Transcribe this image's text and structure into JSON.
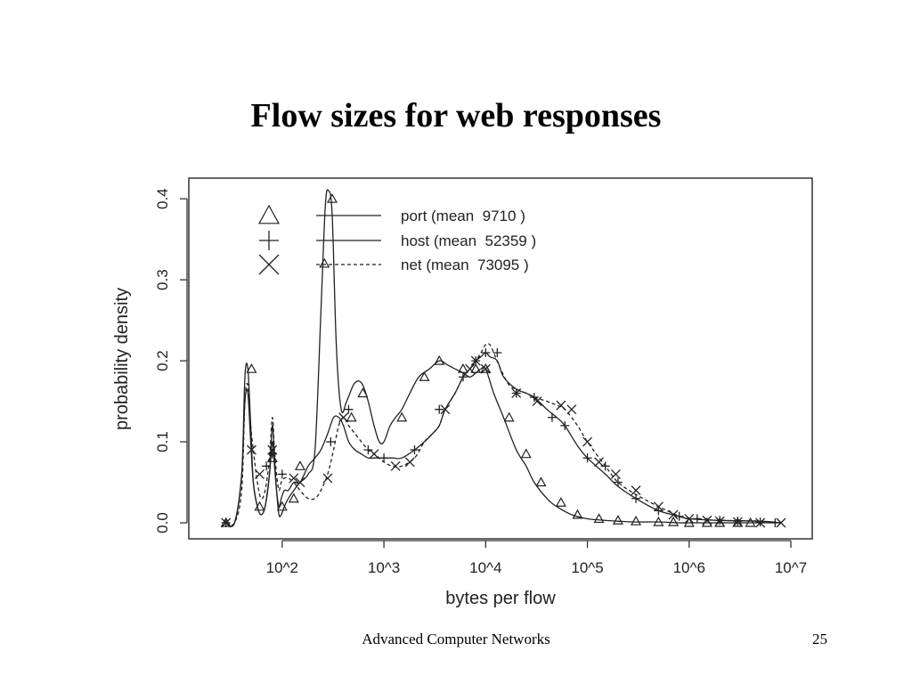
{
  "slide": {
    "title": "Flow sizes for web responses",
    "footer": "Advanced Computer Networks",
    "page_number": "25"
  },
  "chart_data": {
    "type": "line",
    "title": "",
    "xlabel": "bytes per flow",
    "ylabel": "probability density",
    "x_scale": "log10",
    "xlim": [
      20,
      10000000
    ],
    "ylim": [
      0,
      0.42
    ],
    "x_ticks": [
      {
        "value": 100,
        "label": "10^2"
      },
      {
        "value": 1000,
        "label": "10^3"
      },
      {
        "value": 10000,
        "label": "10^4"
      },
      {
        "value": 100000,
        "label": "10^5"
      },
      {
        "value": 1000000,
        "label": "10^6"
      },
      {
        "value": 10000000,
        "label": "10^7"
      }
    ],
    "y_ticks": [
      {
        "value": 0.0,
        "label": "0.0"
      },
      {
        "value": 0.1,
        "label": "0.1"
      },
      {
        "value": 0.2,
        "label": "0.2"
      },
      {
        "value": 0.3,
        "label": "0.3"
      },
      {
        "value": 0.4,
        "label": "0.4"
      }
    ],
    "grid": false,
    "legend_position": "top-left",
    "colors": {
      "line": "#222222",
      "axis": "#333333",
      "text": "#222222"
    },
    "series": [
      {
        "name": "port (mean  9710 )",
        "marker": "triangle",
        "dash": "solid",
        "x": [
          28,
          34,
          40,
          43,
          46,
          49,
          52,
          57,
          62,
          68,
          75,
          80,
          84,
          88,
          93,
          98,
          105,
          115,
          130,
          150,
          180,
          210,
          240,
          265,
          285,
          310,
          340,
          380,
          430,
          500,
          560,
          620,
          700,
          800,
          900,
          1000,
          1150,
          1300,
          1500,
          1800,
          2200,
          2800,
          3500,
          4200,
          5000,
          6000,
          7000,
          8000,
          9000,
          10000,
          12000,
          15000,
          20000,
          25000,
          30000,
          40000,
          50000,
          70000,
          100000,
          150000,
          200000,
          300000,
          500000,
          800000,
          1000000,
          2000000,
          5000000,
          8000000
        ],
        "y": [
          0.0,
          0.0,
          0.06,
          0.18,
          0.19,
          0.12,
          0.05,
          0.02,
          0.01,
          0.02,
          0.06,
          0.12,
          0.08,
          0.04,
          0.01,
          0.01,
          0.02,
          0.03,
          0.04,
          0.05,
          0.06,
          0.09,
          0.26,
          0.39,
          0.41,
          0.38,
          0.22,
          0.14,
          0.15,
          0.17,
          0.175,
          0.17,
          0.15,
          0.12,
          0.1,
          0.1,
          0.12,
          0.13,
          0.14,
          0.16,
          0.18,
          0.19,
          0.2,
          0.195,
          0.19,
          0.185,
          0.18,
          0.185,
          0.19,
          0.19,
          0.16,
          0.13,
          0.09,
          0.07,
          0.05,
          0.03,
          0.02,
          0.01,
          0.005,
          0.003,
          0.002,
          0.001,
          0.001,
          0.0,
          0.0,
          0.0,
          0.0,
          0.0
        ],
        "marker_x": [
          28,
          50,
          60,
          80,
          100,
          130,
          150,
          260,
          310,
          480,
          620,
          1500,
          2500,
          3500,
          6000,
          8000,
          10000,
          17000,
          25000,
          35000,
          55000,
          80000,
          130000,
          200000,
          300000,
          500000,
          700000,
          1000000,
          1500000,
          2000000,
          3000000,
          4000000
        ],
        "marker_y": [
          0.0,
          0.19,
          0.02,
          0.08,
          0.02,
          0.03,
          0.07,
          0.32,
          0.4,
          0.13,
          0.16,
          0.13,
          0.18,
          0.2,
          0.19,
          0.19,
          0.19,
          0.13,
          0.085,
          0.05,
          0.025,
          0.01,
          0.005,
          0.003,
          0.002,
          0.001,
          0.001,
          0.0,
          0.0,
          0.0,
          0.0,
          0.0
        ]
      },
      {
        "name": "host (mean  52359 )",
        "marker": "plus",
        "dash": "solid",
        "x": [
          28,
          34,
          40,
          43,
          46,
          49,
          52,
          57,
          62,
          68,
          75,
          80,
          84,
          88,
          93,
          98,
          105,
          115,
          130,
          150,
          180,
          210,
          240,
          280,
          320,
          360,
          400,
          450,
          520,
          600,
          700,
          800,
          900,
          1000,
          1200,
          1500,
          2000,
          2500,
          3000,
          3500,
          4000,
          5000,
          6000,
          7000,
          8000,
          9000,
          10000,
          11000,
          13000,
          15000,
          20000,
          25000,
          30000,
          40000,
          50000,
          60000,
          80000,
          100000,
          150000,
          200000,
          300000,
          500000,
          800000,
          1000000,
          2000000,
          5000000,
          8000000
        ],
        "y": [
          0.0,
          0.0,
          0.06,
          0.15,
          0.16,
          0.1,
          0.05,
          0.02,
          0.01,
          0.02,
          0.06,
          0.1,
          0.07,
          0.04,
          0.02,
          0.03,
          0.04,
          0.04,
          0.05,
          0.05,
          0.07,
          0.08,
          0.09,
          0.11,
          0.13,
          0.13,
          0.12,
          0.1,
          0.09,
          0.085,
          0.08,
          0.08,
          0.08,
          0.08,
          0.08,
          0.08,
          0.09,
          0.1,
          0.11,
          0.12,
          0.14,
          0.16,
          0.18,
          0.19,
          0.2,
          0.205,
          0.21,
          0.205,
          0.2,
          0.18,
          0.165,
          0.16,
          0.155,
          0.14,
          0.13,
          0.12,
          0.095,
          0.08,
          0.06,
          0.045,
          0.03,
          0.015,
          0.008,
          0.005,
          0.003,
          0.002,
          0.0
        ],
        "marker_x": [
          28,
          70,
          80,
          100,
          300,
          450,
          700,
          1000,
          2000,
          3500,
          6000,
          8000,
          10000,
          13000,
          20000,
          30000,
          45000,
          60000,
          100000,
          150000,
          200000,
          300000,
          500000,
          800000,
          1200000,
          2000000,
          3000000,
          5000000,
          7000000
        ],
        "marker_y": [
          0.0,
          0.07,
          0.085,
          0.06,
          0.1,
          0.14,
          0.09,
          0.08,
          0.09,
          0.14,
          0.18,
          0.2,
          0.21,
          0.21,
          0.16,
          0.155,
          0.13,
          0.12,
          0.08,
          0.07,
          0.05,
          0.03,
          0.015,
          0.008,
          0.005,
          0.003,
          0.002,
          0.001,
          0.0
        ]
      },
      {
        "name": "net (mean  73095 )",
        "marker": "x",
        "dash": "dashed",
        "x": [
          28,
          34,
          40,
          43,
          46,
          49,
          52,
          57,
          62,
          68,
          75,
          80,
          84,
          88,
          93,
          98,
          105,
          115,
          130,
          150,
          180,
          210,
          240,
          280,
          320,
          360,
          400,
          450,
          520,
          600,
          700,
          800,
          900,
          1000,
          1200,
          1500,
          2000,
          2500,
          3000,
          3500,
          4000,
          5000,
          6000,
          7000,
          8000,
          9000,
          10000,
          11000,
          12000,
          14000,
          17000,
          20000,
          25000,
          30000,
          40000,
          50000,
          60000,
          80000,
          100000,
          150000,
          200000,
          300000,
          500000,
          800000,
          1000000,
          2000000,
          5000000,
          8000000
        ],
        "y": [
          0.0,
          0.0,
          0.04,
          0.15,
          0.17,
          0.12,
          0.09,
          0.05,
          0.03,
          0.04,
          0.08,
          0.13,
          0.09,
          0.06,
          0.04,
          0.05,
          0.055,
          0.055,
          0.05,
          0.04,
          0.03,
          0.03,
          0.04,
          0.06,
          0.09,
          0.12,
          0.13,
          0.12,
          0.11,
          0.1,
          0.09,
          0.085,
          0.08,
          0.075,
          0.07,
          0.07,
          0.08,
          0.1,
          0.11,
          0.12,
          0.14,
          0.16,
          0.18,
          0.19,
          0.2,
          0.21,
          0.22,
          0.22,
          0.21,
          0.19,
          0.17,
          0.165,
          0.16,
          0.155,
          0.15,
          0.145,
          0.14,
          0.12,
          0.1,
          0.07,
          0.05,
          0.035,
          0.02,
          0.008,
          0.005,
          0.003,
          0.002,
          0.0
        ],
        "marker_x": [
          28,
          50,
          60,
          80,
          130,
          150,
          280,
          400,
          800,
          1300,
          1800,
          4000,
          7000,
          8000,
          10000,
          20000,
          32000,
          55000,
          70000,
          100000,
          130000,
          190000,
          300000,
          500000,
          700000,
          1000000,
          1500000,
          2000000,
          3000000,
          5000000,
          8000000
        ],
        "marker_y": [
          0.0,
          0.09,
          0.06,
          0.09,
          0.055,
          0.05,
          0.055,
          0.13,
          0.085,
          0.07,
          0.075,
          0.14,
          0.19,
          0.2,
          0.19,
          0.16,
          0.15,
          0.145,
          0.14,
          0.1,
          0.075,
          0.06,
          0.04,
          0.02,
          0.01,
          0.005,
          0.003,
          0.002,
          0.001,
          0.0,
          0.0
        ]
      }
    ]
  }
}
